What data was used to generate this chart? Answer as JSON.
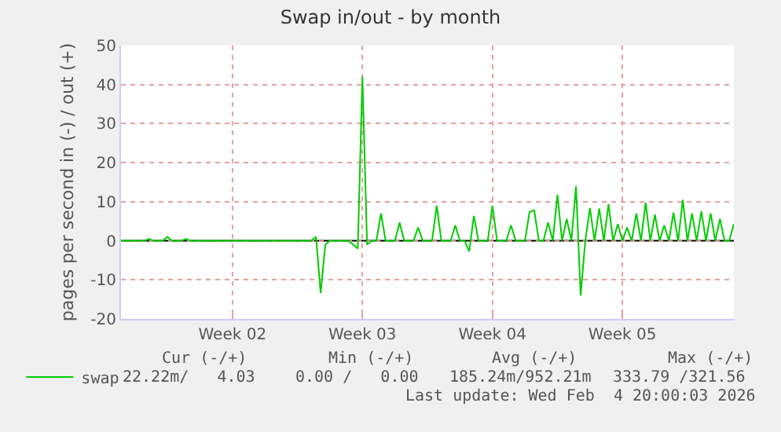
{
  "chart_data": {
    "type": "line",
    "title": "Swap in/out - by month",
    "ylabel": "pages per second in (-) / out (+)",
    "categories": [
      null,
      null,
      null,
      null,
      null,
      null,
      null,
      null,
      null,
      null,
      null,
      null,
      null,
      null,
      null,
      null,
      null,
      null,
      null,
      null,
      null,
      null,
      null,
      null,
      "Week 02",
      null,
      null,
      null,
      null,
      null,
      null,
      null,
      null,
      null,
      null,
      null,
      null,
      null,
      null,
      null,
      null,
      null,
      null,
      null,
      null,
      null,
      null,
      null,
      null,
      null,
      null,
      null,
      "Week 03",
      null,
      null,
      null,
      null,
      null,
      null,
      null,
      null,
      null,
      null,
      null,
      null,
      null,
      null,
      null,
      null,
      null,
      null,
      null,
      null,
      null,
      null,
      null,
      null,
      null,
      null,
      null,
      "Week 04",
      null,
      null,
      null,
      null,
      null,
      null,
      null,
      null,
      null,
      null,
      null,
      null,
      null,
      null,
      null,
      null,
      null,
      null,
      null,
      null,
      null,
      null,
      null,
      null,
      null,
      null,
      null,
      "Week 05",
      null,
      null,
      null,
      null,
      null,
      null,
      null,
      null,
      null,
      null,
      null,
      null,
      null,
      null,
      null,
      null,
      null,
      null,
      null,
      null,
      null,
      null,
      null,
      null
    ],
    "series": [
      {
        "name": "swap",
        "color": "#00cc00",
        "values": [
          0,
          0,
          0,
          0,
          0,
          0,
          0.5,
          0,
          0,
          0,
          1,
          0,
          0,
          0,
          0.5,
          0,
          0,
          0,
          0,
          0,
          0,
          0,
          0,
          0,
          0,
          0,
          0,
          0,
          0,
          0,
          0,
          0,
          0,
          0,
          0,
          0,
          0,
          0,
          0,
          0,
          0,
          0,
          1,
          -13.4,
          -1,
          0,
          0,
          0,
          0,
          0,
          -1,
          -2,
          42,
          -1,
          0,
          0,
          7,
          0,
          0,
          0,
          4.7,
          0,
          0,
          0,
          3.4,
          0,
          0,
          0,
          9,
          0,
          0,
          0,
          4,
          0,
          0,
          -2.7,
          6.4,
          0,
          0,
          0,
          9,
          0,
          0,
          0,
          4,
          0,
          0,
          0,
          7.4,
          7.8,
          0,
          0,
          4.7,
          0,
          11.8,
          0,
          5.6,
          0,
          14,
          -14,
          0,
          8.4,
          0,
          8.3,
          0,
          9.4,
          0,
          4.3,
          0,
          3.4,
          0,
          7,
          0,
          9.8,
          0,
          6.7,
          0,
          4,
          0,
          7.2,
          0,
          10.5,
          0,
          7,
          0,
          7.6,
          0,
          7,
          0,
          5.6,
          0,
          0,
          4.3
        ]
      }
    ],
    "ylim": [
      -20,
      50
    ],
    "yticks": [
      -20,
      -10,
      0,
      10,
      20,
      30,
      40,
      50
    ],
    "ref_lines": [
      {
        "axis": "y",
        "value": 0,
        "color": "#000000"
      }
    ],
    "grid": true,
    "legend": "bottom left",
    "marker": "none",
    "line_style": "solid",
    "annotations": [
      "Cur (-/+)",
      "Min (-/+)",
      "Avg (-/+)",
      "Max (-/+)",
      "22.22m/   4.03",
      "0.00 /   0.00",
      "185.24m/952.21m",
      "333.79 /321.56",
      "Last update: Wed Feb  4 20:00:03 2026"
    ]
  }
}
